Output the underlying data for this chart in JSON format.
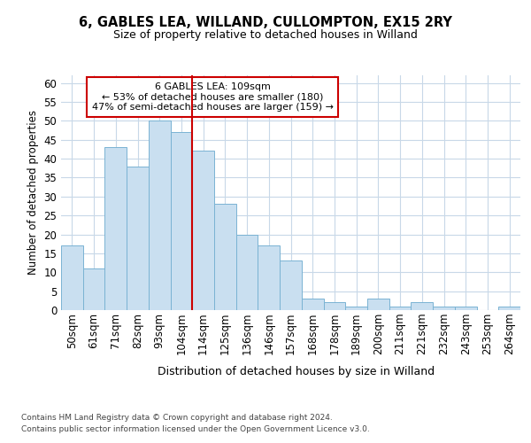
{
  "title1": "6, GABLES LEA, WILLAND, CULLOMPTON, EX15 2RY",
  "title2": "Size of property relative to detached houses in Willand",
  "xlabel": "Distribution of detached houses by size in Willand",
  "ylabel": "Number of detached properties",
  "bar_labels": [
    "50sqm",
    "61sqm",
    "71sqm",
    "82sqm",
    "93sqm",
    "104sqm",
    "114sqm",
    "125sqm",
    "136sqm",
    "146sqm",
    "157sqm",
    "168sqm",
    "178sqm",
    "189sqm",
    "200sqm",
    "211sqm",
    "221sqm",
    "232sqm",
    "243sqm",
    "253sqm",
    "264sqm"
  ],
  "bar_values": [
    17,
    11,
    43,
    38,
    50,
    47,
    42,
    28,
    20,
    17,
    13,
    3,
    2,
    1,
    3,
    1,
    2,
    1,
    1,
    0,
    1
  ],
  "bar_color": "#c9dff0",
  "bar_edge_color": "#7ab3d3",
  "vline_index": 6,
  "vline_color": "#cc0000",
  "annotation_title": "6 GABLES LEA: 109sqm",
  "annotation_line1": "← 53% of detached houses are smaller (180)",
  "annotation_line2": "47% of semi-detached houses are larger (159) →",
  "annotation_box_color": "#cc0000",
  "ylim": [
    0,
    62
  ],
  "yticks": [
    0,
    5,
    10,
    15,
    20,
    25,
    30,
    35,
    40,
    45,
    50,
    55,
    60
  ],
  "footer1": "Contains HM Land Registry data © Crown copyright and database right 2024.",
  "footer2": "Contains public sector information licensed under the Open Government Licence v3.0.",
  "bg_color": "#ffffff",
  "grid_color": "#c8d8e8",
  "title1_fontsize": 10.5,
  "title2_fontsize": 9,
  "ylabel_fontsize": 8.5,
  "xlabel_fontsize": 9,
  "tick_fontsize": 8.5,
  "footer_fontsize": 6.5
}
